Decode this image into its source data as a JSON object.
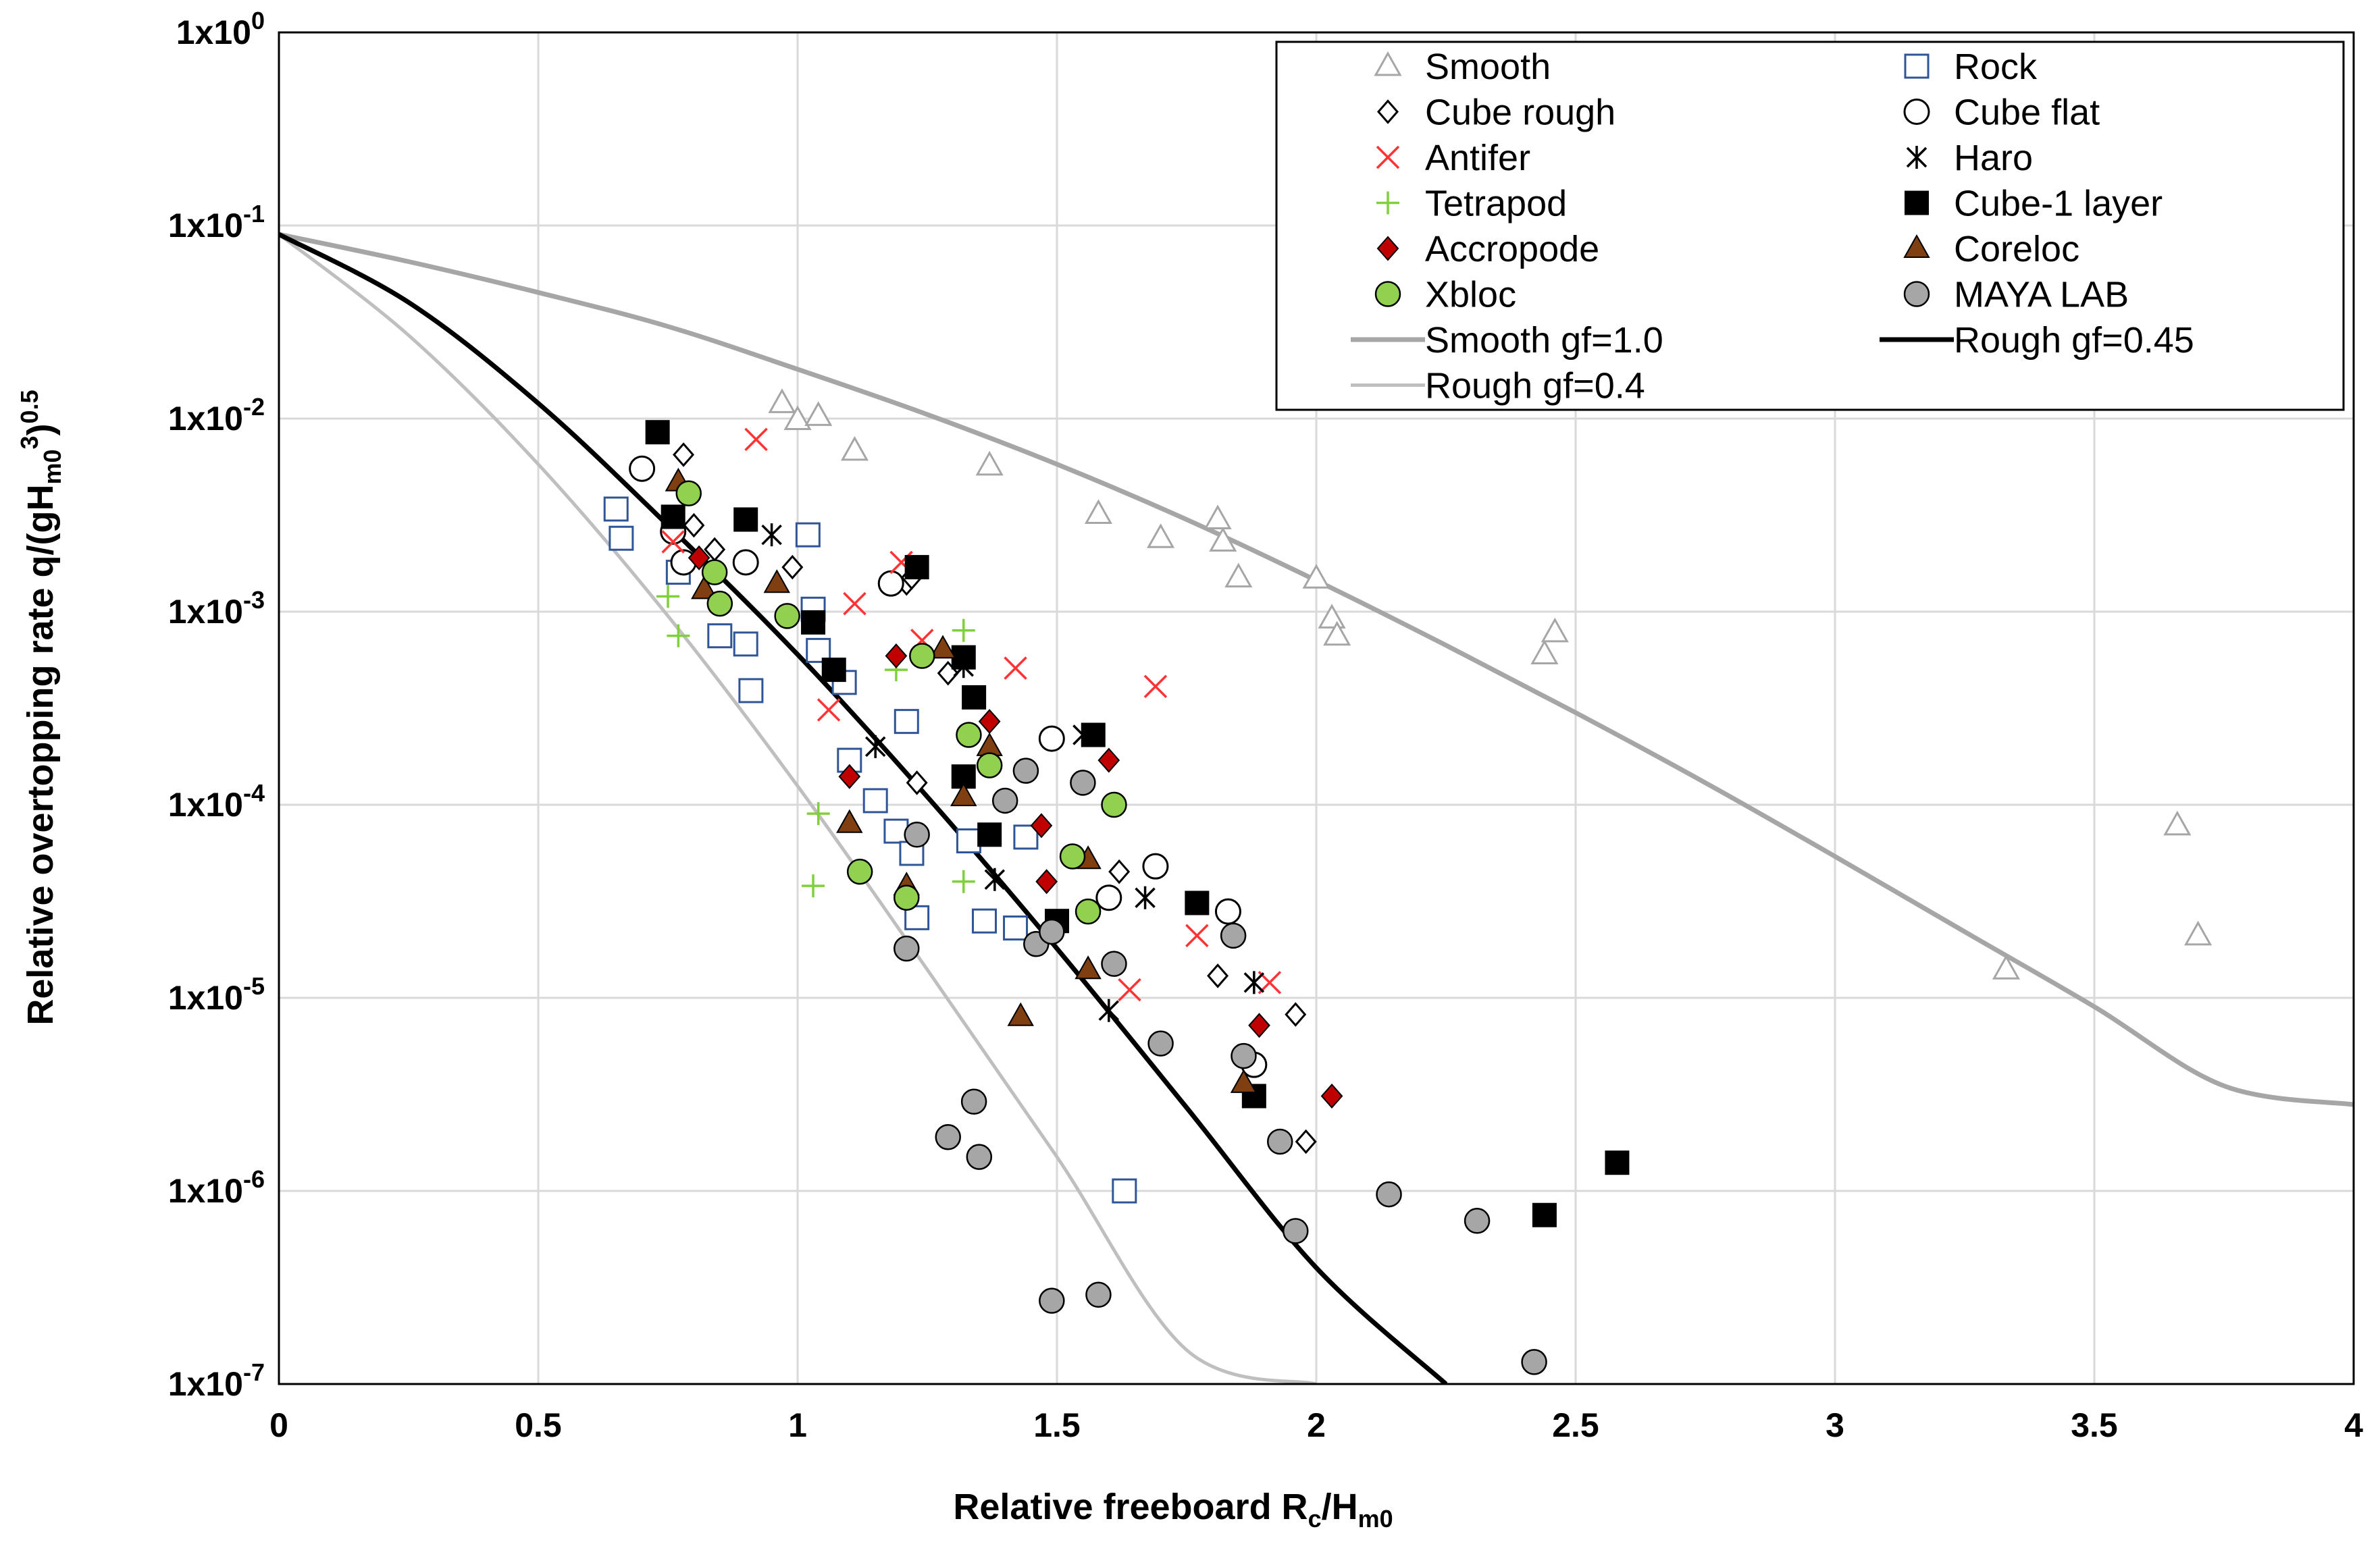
{
  "chart_data": {
    "type": "scatter",
    "title": "",
    "xlabel": "Relative freeboard Rc/Hm0",
    "xlabel_parts": {
      "main": "Relative freeboard R",
      "sub1": "c",
      "mid": "/H",
      "sub2": "m0"
    },
    "ylabel": "Relative overtopping rate q/(gHm0^3)^0.5",
    "ylabel_parts": {
      "main": "Relative overtopping rate q/(gH",
      "sub": "m0",
      "sup1": "3",
      "close": ")",
      "sup2": "0.5"
    },
    "xlim": [
      0,
      4
    ],
    "ylim": [
      1e-07,
      1
    ],
    "yscale": "log",
    "grid": true,
    "legend_position": "top-right",
    "x_ticks": [
      "0",
      "0.5",
      "1",
      "1.5",
      "2",
      "2.5",
      "3",
      "3.5",
      "4"
    ],
    "y_ticks": [
      {
        "base": "1x10",
        "exp": "0"
      },
      {
        "base": "1x10",
        "exp": "-1"
      },
      {
        "base": "1x10",
        "exp": "-2"
      },
      {
        "base": "1x10",
        "exp": "-3"
      },
      {
        "base": "1x10",
        "exp": "-4"
      },
      {
        "base": "1x10",
        "exp": "-5"
      },
      {
        "base": "1x10",
        "exp": "-6"
      },
      {
        "base": "1x10",
        "exp": "-7"
      }
    ],
    "series": [
      {
        "name": "Smooth",
        "marker": "triangle-open",
        "color": "#a6a6a6",
        "points": [
          [
            0.97,
            0.012
          ],
          [
            1.0,
            0.0098
          ],
          [
            1.04,
            0.0103
          ],
          [
            1.11,
            0.0068
          ],
          [
            1.37,
            0.0057
          ],
          [
            1.58,
            0.0032
          ],
          [
            1.7,
            0.0024
          ],
          [
            1.81,
            0.003
          ],
          [
            1.82,
            0.0023
          ],
          [
            1.85,
            0.0015
          ],
          [
            2.0,
            0.00148
          ],
          [
            2.03,
            0.00092
          ],
          [
            2.04,
            0.00075
          ],
          [
            2.44,
            0.0006
          ],
          [
            2.46,
            0.00078
          ],
          [
            3.33,
            1.4e-05
          ],
          [
            3.66,
            7.8e-05
          ],
          [
            3.7,
            2.1e-05
          ]
        ]
      },
      {
        "name": "Rock",
        "marker": "square-open",
        "color": "#2f5597",
        "points": [
          [
            0.65,
            0.0034
          ],
          [
            0.66,
            0.0024
          ],
          [
            0.77,
            0.0016
          ],
          [
            0.85,
            0.00075
          ],
          [
            0.9,
            0.00068
          ],
          [
            0.91,
            0.00039
          ],
          [
            1.02,
            0.0025
          ],
          [
            1.03,
            0.00103
          ],
          [
            1.04,
            0.00063
          ],
          [
            1.09,
            0.00043
          ],
          [
            1.1,
            0.00017
          ],
          [
            1.15,
            0.000105
          ],
          [
            1.19,
            7.3e-05
          ],
          [
            1.21,
            0.00027
          ],
          [
            1.22,
            5.6e-05
          ],
          [
            1.23,
            2.6e-05
          ],
          [
            1.33,
            6.5e-05
          ],
          [
            1.36,
            2.5e-05
          ],
          [
            1.42,
            2.3e-05
          ],
          [
            1.44,
            6.8e-05
          ],
          [
            1.63,
            1e-06
          ]
        ]
      },
      {
        "name": "Cube rough",
        "marker": "diamond-open",
        "color": "#000000",
        "points": [
          [
            0.78,
            0.0065
          ],
          [
            0.8,
            0.0028
          ],
          [
            0.84,
            0.0021
          ],
          [
            0.99,
            0.0017
          ],
          [
            1.21,
            0.0014
          ],
          [
            1.22,
            0.0015
          ],
          [
            1.29,
            0.00048
          ],
          [
            1.23,
            0.00013
          ],
          [
            1.62,
            4.5e-05
          ],
          [
            1.81,
            1.3e-05
          ],
          [
            1.96,
            8.2e-06
          ],
          [
            1.98,
            1.8e-06
          ]
        ]
      },
      {
        "name": "Cube flat",
        "marker": "circle-open",
        "color": "#000000",
        "points": [
          [
            0.7,
            0.0055
          ],
          [
            0.76,
            0.0026
          ],
          [
            0.78,
            0.0018
          ],
          [
            0.9,
            0.0018
          ],
          [
            1.18,
            0.0014
          ],
          [
            1.49,
            0.00022
          ],
          [
            1.6,
            3.3e-05
          ],
          [
            1.69,
            4.8e-05
          ],
          [
            1.83,
            2.8e-05
          ],
          [
            1.88,
            4.5e-06
          ]
        ]
      },
      {
        "name": "Antifer",
        "marker": "x",
        "color": "#ff3333",
        "points": [
          [
            0.76,
            0.0023
          ],
          [
            0.92,
            0.0078
          ],
          [
            1.11,
            0.0011
          ],
          [
            1.06,
            0.00031
          ],
          [
            1.2,
            0.0018
          ],
          [
            1.24,
            0.00071
          ],
          [
            1.42,
            0.00051
          ],
          [
            1.69,
            0.00041
          ],
          [
            1.77,
            2.1e-05
          ],
          [
            1.64,
            1.1e-05
          ],
          [
            1.91,
            1.2e-05
          ]
        ]
      },
      {
        "name": "Haro",
        "marker": "asterisk",
        "color": "#000000",
        "points": [
          [
            0.95,
            0.0025
          ],
          [
            1.15,
            0.0002
          ],
          [
            1.32,
            0.00052
          ],
          [
            1.38,
            4.1e-05
          ],
          [
            1.55,
            0.00023
          ],
          [
            1.67,
            3.3e-05
          ],
          [
            1.6,
            8.6e-06
          ],
          [
            1.88,
            1.2e-05
          ]
        ]
      },
      {
        "name": "Tetrapod",
        "marker": "plus",
        "color": "#7fd13b",
        "points": [
          [
            0.75,
            0.0012
          ],
          [
            0.77,
            0.00075
          ],
          [
            1.04,
            9e-05
          ],
          [
            1.03,
            3.8e-05
          ],
          [
            1.19,
            0.0005
          ],
          [
            1.32,
            4e-05
          ],
          [
            1.32,
            0.0008
          ]
        ]
      },
      {
        "name": "Cube-1 layer",
        "marker": "square-filled",
        "color": "#000000",
        "points": [
          [
            0.73,
            0.0085
          ],
          [
            0.76,
            0.0031
          ],
          [
            0.9,
            0.003
          ],
          [
            1.03,
            0.00088
          ],
          [
            1.07,
            0.0005
          ],
          [
            1.23,
            0.0017
          ],
          [
            1.32,
            0.00058
          ],
          [
            1.32,
            0.00014
          ],
          [
            1.34,
            0.00036
          ],
          [
            1.37,
            7e-05
          ],
          [
            1.5,
            2.5e-05
          ],
          [
            1.57,
            0.00023
          ],
          [
            1.77,
            3.1e-05
          ],
          [
            1.88,
            3.1e-06
          ],
          [
            2.44,
            7.5e-07
          ],
          [
            2.58,
            1.4e-06
          ]
        ]
      },
      {
        "name": "Accropode",
        "marker": "diamond-filled",
        "color": "#c00000",
        "points": [
          [
            0.81,
            0.0019
          ],
          [
            1.1,
            0.00014
          ],
          [
            1.19,
            0.00059
          ],
          [
            1.37,
            0.00027
          ],
          [
            1.47,
            7.8e-05
          ],
          [
            1.48,
            4e-05
          ],
          [
            1.6,
            0.00017
          ],
          [
            1.89,
            7.2e-06
          ],
          [
            2.03,
            3.1e-06
          ]
        ]
      },
      {
        "name": "Coreloc",
        "marker": "triangle-filled",
        "color": "#7f3f10",
        "points": [
          [
            0.77,
            0.0047
          ],
          [
            0.82,
            0.0013
          ],
          [
            0.96,
            0.0014
          ],
          [
            1.1,
            8e-05
          ],
          [
            1.21,
            3.8e-05
          ],
          [
            1.28,
            0.00064
          ],
          [
            1.32,
            0.00011
          ],
          [
            1.37,
            0.0002
          ],
          [
            1.43,
            8e-06
          ],
          [
            1.56,
            5.2e-05
          ],
          [
            1.56,
            1.4e-05
          ],
          [
            1.86,
            3.6e-06
          ]
        ]
      },
      {
        "name": "Xbloc",
        "marker": "circle-filled",
        "color": "#92d050",
        "points": [
          [
            0.79,
            0.0041
          ],
          [
            0.84,
            0.0016
          ],
          [
            0.85,
            0.0011
          ],
          [
            0.98,
            0.00095
          ],
          [
            1.12,
            4.5e-05
          ],
          [
            1.21,
            3.3e-05
          ],
          [
            1.24,
            0.00059
          ],
          [
            1.33,
            0.00023
          ],
          [
            1.37,
            0.00016
          ],
          [
            1.53,
            5.4e-05
          ],
          [
            1.56,
            2.8e-05
          ],
          [
            1.61,
            0.0001
          ]
        ]
      },
      {
        "name": "MAYA LAB",
        "marker": "circle-gray",
        "color": "#a6a6a6",
        "points": [
          [
            1.21,
            1.8e-05
          ],
          [
            1.23,
            7e-05
          ],
          [
            1.29,
            1.9e-06
          ],
          [
            1.34,
            2.9e-06
          ],
          [
            1.35,
            1.5e-06
          ],
          [
            1.4,
            0.000105
          ],
          [
            1.44,
            0.00015
          ],
          [
            1.46,
            1.9e-05
          ],
          [
            1.49,
            2.2e-05
          ],
          [
            1.49,
            2.7e-07
          ],
          [
            1.55,
            0.00013
          ],
          [
            1.58,
            2.9e-07
          ],
          [
            1.61,
            1.5e-05
          ],
          [
            1.7,
            5.8e-06
          ],
          [
            1.84,
            2.1e-05
          ],
          [
            1.86,
            5e-06
          ],
          [
            1.93,
            1.8e-06
          ],
          [
            1.96,
            6.2e-07
          ],
          [
            2.14,
            9.6e-07
          ],
          [
            2.31,
            7e-07
          ],
          [
            2.42,
            1.3e-07
          ]
        ]
      }
    ],
    "curves": [
      {
        "name": "Smooth gf=1.0",
        "color": "#a6a6a6",
        "width": 7,
        "x": [
          0,
          0.25,
          0.5,
          0.75,
          1,
          1.25,
          1.5,
          1.75,
          2,
          2.25,
          2.5,
          2.75,
          3,
          3.25,
          3.5,
          3.75,
          4
        ],
        "y": [
          0.09,
          0.065,
          0.045,
          0.03,
          0.018,
          0.0105,
          0.0058,
          0.003,
          0.00145,
          0.00067,
          0.0003,
          0.00013,
          5.4e-05,
          2.2e-05,
          9e-06,
          3.5e-06,
          2.8e-06
        ]
      },
      {
        "name": "Rough gf=0.4",
        "color": "#bfbfbf",
        "width": 5,
        "x": [
          0,
          0.25,
          0.5,
          0.75,
          1,
          1.25,
          1.5,
          1.75,
          2
        ],
        "y": [
          0.09,
          0.027,
          0.0058,
          0.00095,
          0.000125,
          1.4e-05,
          1.5e-06,
          1.5e-07,
          1e-07
        ]
      },
      {
        "name": "Rough gf=0.45",
        "color": "#000000",
        "width": 7,
        "x": [
          0,
          0.25,
          0.5,
          0.75,
          1,
          1.25,
          1.5,
          1.75,
          2,
          2.25
        ],
        "y": [
          0.09,
          0.04,
          0.012,
          0.0028,
          0.0006,
          0.00011,
          1.8e-05,
          2.7e-06,
          4e-07,
          1e-07
        ]
      }
    ],
    "legend": {
      "left": [
        "Smooth",
        "Cube rough",
        "Antifer",
        "Tetrapod",
        "Accropode",
        "Xbloc",
        "Smooth gf=1.0",
        "Rough gf=0.4"
      ],
      "right": [
        "Rock",
        "Cube flat",
        "Haro",
        "Cube-1 layer",
        "Coreloc",
        "MAYA LAB",
        "Rough gf=0.45"
      ]
    }
  }
}
